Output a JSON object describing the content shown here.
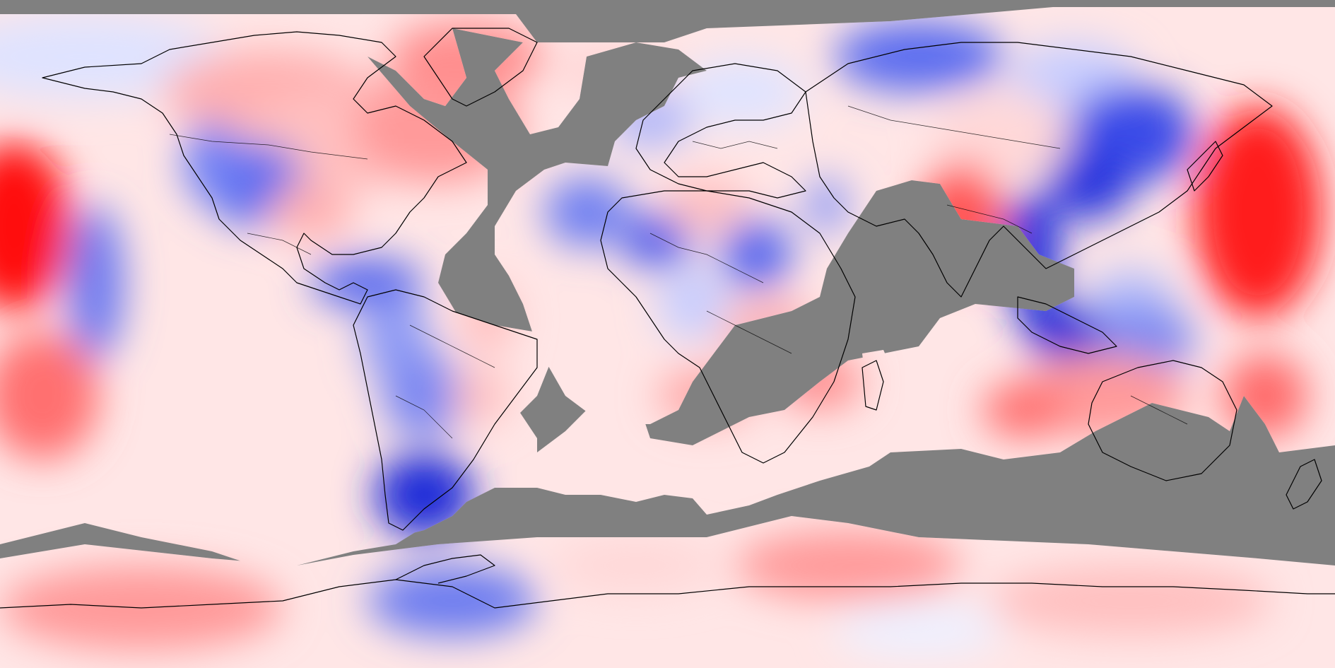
{
  "map": {
    "projection": "equirectangular",
    "no_data_color": "#808080",
    "colormap": {
      "negative_strong": "#0000dd",
      "negative_mid": "#5566ee",
      "negative_weak": "#ccd2ff",
      "neutral": "#ffffff",
      "positive_weak": "#ffd0d0",
      "positive_mid": "#ff8080",
      "positive_strong": "#ff0000"
    },
    "layers": [
      "anomaly-field",
      "coastlines",
      "country-borders"
    ]
  }
}
